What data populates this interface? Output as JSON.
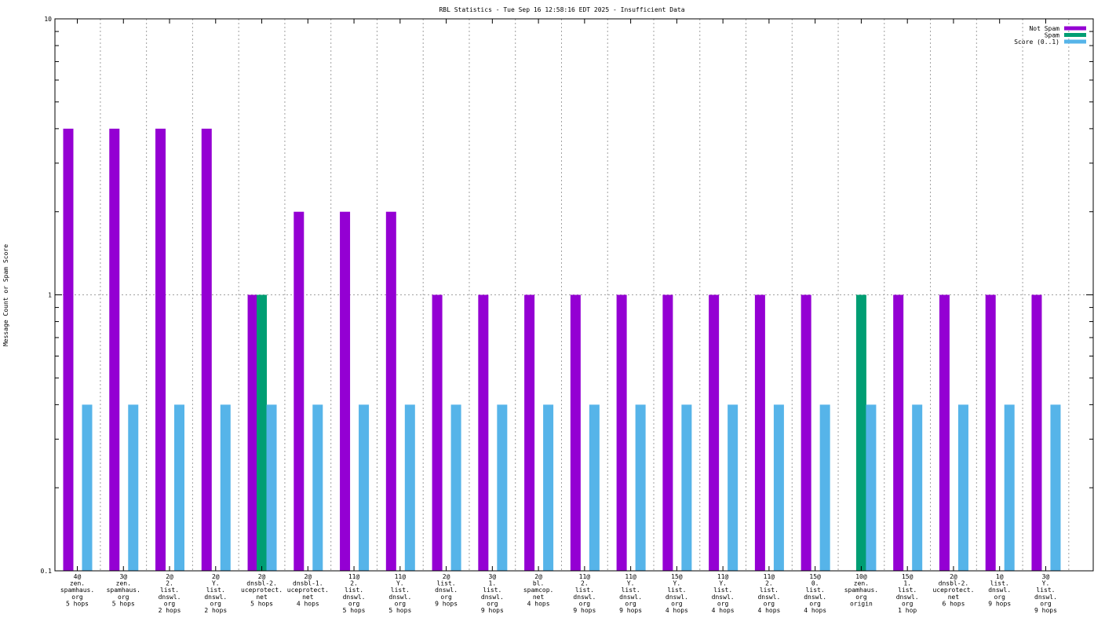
{
  "chart_data": {
    "type": "bar",
    "title": "RBL Statistics - Tue Sep 16 12:58:16 EDT 2025 - Insufficient Data",
    "xlabel": "",
    "ylabel": "Message Count or Spam Score",
    "yscale": "log",
    "ylim": [
      0.1,
      10
    ],
    "yticks": [
      "0.1",
      "1",
      "10"
    ],
    "grid": true,
    "legend_position": "top-right",
    "categories": [
      [
        "4@",
        "zen.",
        "spamhaus.",
        "org",
        "5 hops"
      ],
      [
        "3@",
        "zen.",
        "spamhaus.",
        "org",
        "5 hops"
      ],
      [
        "2@",
        "2.",
        "list.",
        "dnswl.",
        "org",
        "2 hops"
      ],
      [
        "2@",
        "Y.",
        "list.",
        "dnswl.",
        "org",
        "2 hops"
      ],
      [
        "2@",
        "dnsbl-2.",
        "uceprotect.",
        "net",
        "5 hops"
      ],
      [
        "2@",
        "dnsbl-1.",
        "uceprotect.",
        "net",
        "4 hops"
      ],
      [
        "11@",
        "2.",
        "list.",
        "dnswl.",
        "org",
        "5 hops"
      ],
      [
        "11@",
        "Y.",
        "list.",
        "dnswl.",
        "org",
        "5 hops"
      ],
      [
        "2@",
        "list.",
        "dnswl.",
        "org",
        "9 hops"
      ],
      [
        "3@",
        "1.",
        "list.",
        "dnswl.",
        "org",
        "9 hops"
      ],
      [
        "2@",
        "bl.",
        "spamcop.",
        "net",
        "4 hops"
      ],
      [
        "11@",
        "2.",
        "list.",
        "dnswl.",
        "org",
        "9 hops"
      ],
      [
        "11@",
        "Y.",
        "list.",
        "dnswl.",
        "org",
        "9 hops"
      ],
      [
        "15@",
        "Y.",
        "list.",
        "dnswl.",
        "org",
        "4 hops"
      ],
      [
        "11@",
        "Y.",
        "list.",
        "dnswl.",
        "org",
        "4 hops"
      ],
      [
        "11@",
        "2.",
        "list.",
        "dnswl.",
        "org",
        "4 hops"
      ],
      [
        "15@",
        "0.",
        "list.",
        "dnswl.",
        "org",
        "4 hops"
      ],
      [
        "10@",
        "zen.",
        "spamhaus.",
        "org",
        "origin"
      ],
      [
        "15@",
        "1.",
        "list.",
        "dnswl.",
        "org",
        "1 hop"
      ],
      [
        "2@",
        "dnsbl-2.",
        "uceprotect.",
        "net",
        "6 hops"
      ],
      [
        "1@",
        "list.",
        "dnswl.",
        "org",
        "9 hops"
      ],
      [
        "3@",
        "Y.",
        "list.",
        "dnswl.",
        "org",
        "9 hops"
      ]
    ],
    "series": [
      {
        "name": "Not Spam",
        "color": "#9400d3",
        "values": [
          4,
          4,
          4,
          4,
          1,
          2,
          2,
          2,
          1,
          1,
          1,
          1,
          1,
          1,
          1,
          1,
          1,
          0,
          1,
          1,
          1,
          1
        ]
      },
      {
        "name": "Spam",
        "color": "#009e73",
        "values": [
          0,
          0,
          0,
          0,
          1,
          0,
          0,
          0,
          0,
          0,
          0,
          0,
          0,
          0,
          0,
          0,
          0,
          1,
          0,
          0,
          0,
          0
        ]
      },
      {
        "name": "Score (0..1)",
        "color": "#56b4e9",
        "values": [
          0.4,
          0.4,
          0.4,
          0.4,
          0.4,
          0.4,
          0.4,
          0.4,
          0.4,
          0.4,
          0.4,
          0.4,
          0.4,
          0.4,
          0.4,
          0.4,
          0.4,
          0.4,
          0.4,
          0.4,
          0.4,
          0.4
        ]
      }
    ]
  }
}
